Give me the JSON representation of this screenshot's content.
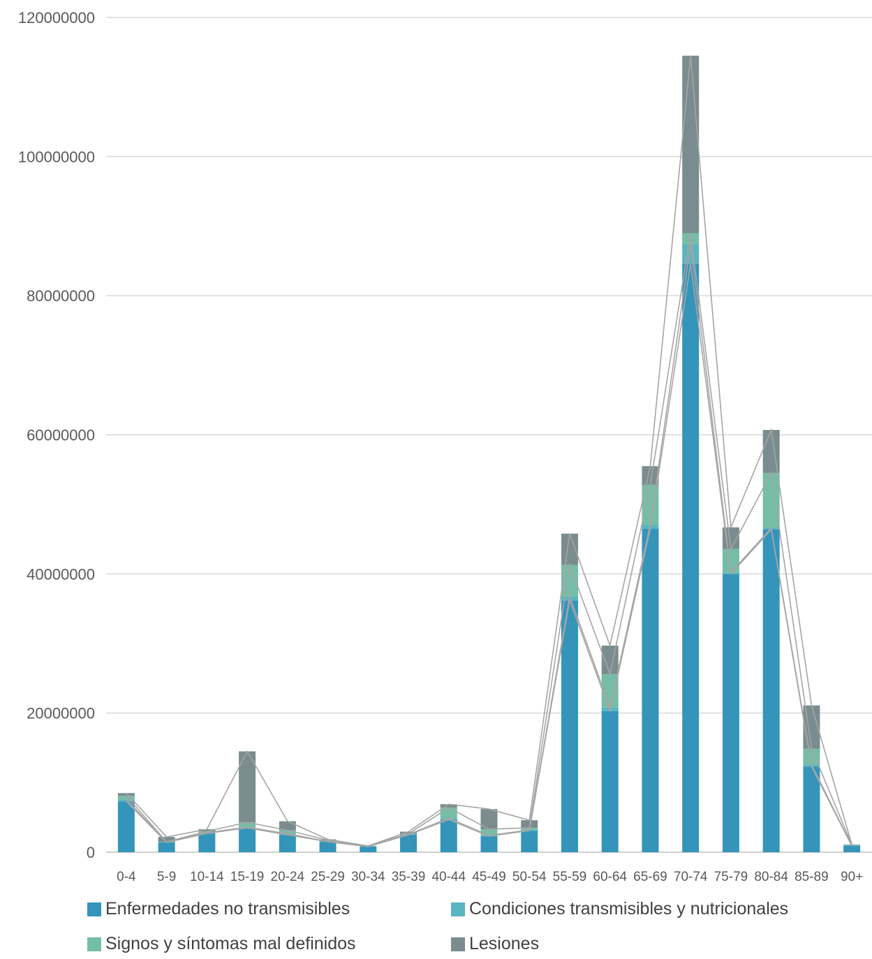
{
  "chart_data": {
    "type": "bar",
    "stacked": true,
    "title": "",
    "xlabel": "",
    "ylabel": "",
    "ylim": [
      0,
      120000000
    ],
    "yticks": [
      0,
      20000000,
      40000000,
      60000000,
      80000000,
      100000000,
      120000000
    ],
    "ytick_labels": [
      "0",
      "20000000",
      "40000000",
      "60000000",
      "80000000",
      "100000000",
      "120000000"
    ],
    "grid": "horizontal",
    "legend_position": "bottom",
    "series_lines": true,
    "categories": [
      "0-4",
      "5-9",
      "10-14",
      "15-19",
      "20-24",
      "25-29",
      "30-34",
      "35-39",
      "40-44",
      "45-49",
      "50-54",
      "55-59",
      "60-64",
      "65-69",
      "70-74",
      "75-79",
      "80-84",
      "85-89",
      "90+"
    ],
    "series": [
      {
        "name": "Enfermedades no transmisibles",
        "color": "#3494ba",
        "values": [
          7300000,
          1400000,
          2700000,
          3500000,
          2500000,
          1500000,
          800000,
          2500000,
          4700000,
          2300000,
          3100000,
          36200000,
          20300000,
          46500000,
          84600000,
          40000000,
          46400000,
          12300000,
          900000
        ]
      },
      {
        "name": "Condiciones transmisibles y nutricionales",
        "color": "#58b6c0",
        "values": [
          300000,
          50000,
          100000,
          100000,
          150000,
          50000,
          50000,
          50000,
          200000,
          100000,
          100000,
          600000,
          500000,
          600000,
          2800000,
          200000,
          200000,
          300000,
          50000
        ]
      },
      {
        "name": "Signos y síntomas mal definidos",
        "color": "#75bda7",
        "values": [
          500000,
          50000,
          200000,
          700000,
          500000,
          200000,
          50000,
          100000,
          1500000,
          900000,
          300000,
          4500000,
          4800000,
          5700000,
          1600000,
          3400000,
          7900000,
          2300000,
          100000
        ]
      },
      {
        "name": "Lesiones",
        "color": "#7a8c8e",
        "values": [
          400000,
          700000,
          300000,
          10200000,
          1300000,
          100000,
          0,
          300000,
          500000,
          2900000,
          1100000,
          4500000,
          4100000,
          2700000,
          25500000,
          3100000,
          6200000,
          6200000,
          50000
        ]
      }
    ]
  }
}
